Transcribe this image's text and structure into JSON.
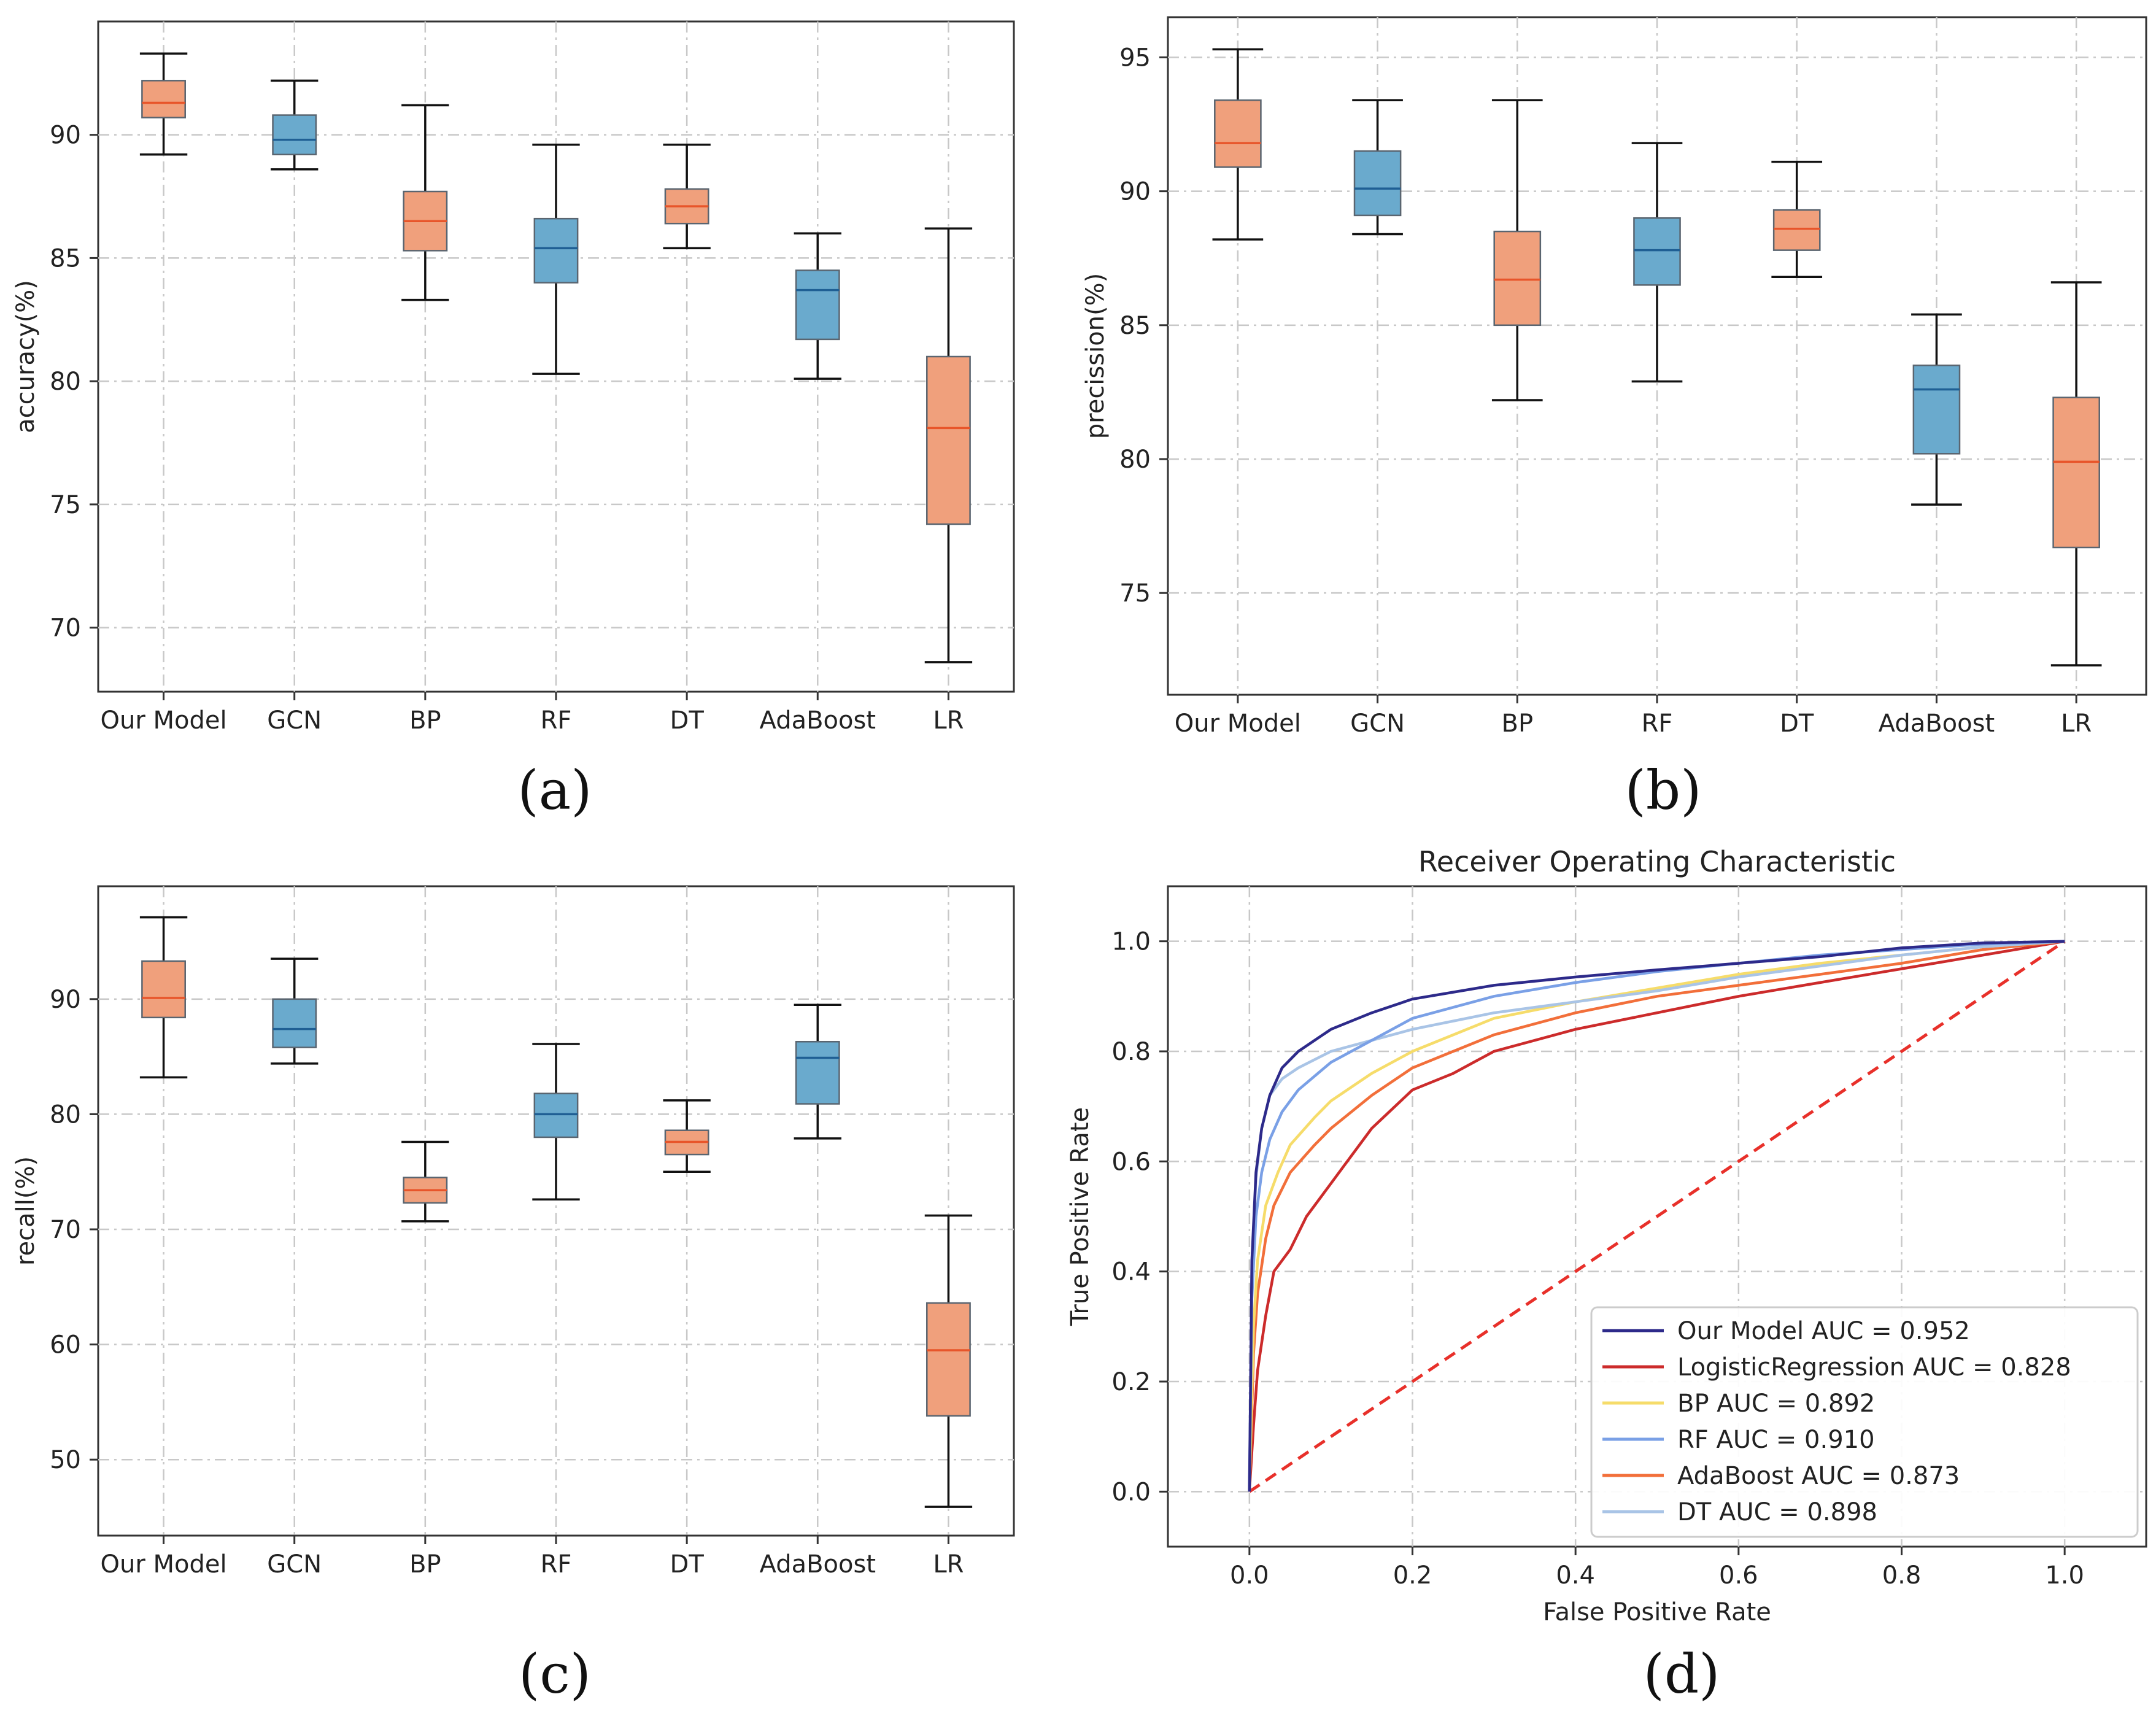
{
  "colors": {
    "orange_box": "#f0a07c",
    "orange_median": "#e8552a",
    "blue_box": "#6aaacd",
    "blue_median": "#1f5f94",
    "grid": "#c8c8c8",
    "axis": "#333333"
  },
  "chart_data": [
    {
      "id": "a",
      "type": "box",
      "caption": "(a)",
      "title": "",
      "xlabel": "",
      "ylabel": "accuracy(%)",
      "ylim": [
        67.4,
        94.6
      ],
      "yticks": [
        70,
        75,
        80,
        85,
        90
      ],
      "categories": [
        "Our Model",
        "GCN",
        "BP",
        "RF",
        "DT",
        "AdaBoost",
        "LR"
      ],
      "box_colors": [
        "orange",
        "blue",
        "orange",
        "blue",
        "orange",
        "blue",
        "orange"
      ],
      "boxes": [
        {
          "min": 89.2,
          "q1": 90.7,
          "median": 91.3,
          "q3": 92.2,
          "max": 93.3
        },
        {
          "min": 88.6,
          "q1": 89.2,
          "median": 89.8,
          "q3": 90.8,
          "max": 92.2
        },
        {
          "min": 83.3,
          "q1": 85.3,
          "median": 86.5,
          "q3": 87.7,
          "max": 91.2
        },
        {
          "min": 80.3,
          "q1": 84.0,
          "median": 85.4,
          "q3": 86.6,
          "max": 89.6
        },
        {
          "min": 85.4,
          "q1": 86.4,
          "median": 87.1,
          "q3": 87.8,
          "max": 89.6
        },
        {
          "min": 80.1,
          "q1": 81.7,
          "median": 83.7,
          "q3": 84.5,
          "max": 86.0
        },
        {
          "min": 68.6,
          "q1": 74.2,
          "median": 78.1,
          "q3": 81.0,
          "max": 86.2
        }
      ]
    },
    {
      "id": "b",
      "type": "box",
      "caption": "(b)",
      "title": "",
      "xlabel": "",
      "ylabel": "precission(%)",
      "ylim": [
        71.2,
        96.5
      ],
      "yticks": [
        75,
        80,
        85,
        90,
        95
      ],
      "categories": [
        "Our Model",
        "GCN",
        "BP",
        "RF",
        "DT",
        "AdaBoost",
        "LR"
      ],
      "box_colors": [
        "orange",
        "blue",
        "orange",
        "blue",
        "orange",
        "blue",
        "orange"
      ],
      "boxes": [
        {
          "min": 88.2,
          "q1": 90.9,
          "median": 91.8,
          "q3": 93.4,
          "max": 95.3
        },
        {
          "min": 88.4,
          "q1": 89.1,
          "median": 90.1,
          "q3": 91.5,
          "max": 93.4
        },
        {
          "min": 82.2,
          "q1": 85.0,
          "median": 86.7,
          "q3": 88.5,
          "max": 93.4
        },
        {
          "min": 82.9,
          "q1": 86.5,
          "median": 87.8,
          "q3": 89.0,
          "max": 91.8
        },
        {
          "min": 86.8,
          "q1": 87.8,
          "median": 88.6,
          "q3": 89.3,
          "max": 91.1
        },
        {
          "min": 78.3,
          "q1": 80.2,
          "median": 82.6,
          "q3": 83.5,
          "max": 85.4
        },
        {
          "min": 72.3,
          "q1": 76.7,
          "median": 79.9,
          "q3": 82.3,
          "max": 86.6
        }
      ]
    },
    {
      "id": "c",
      "type": "box",
      "caption": "(c)",
      "title": "",
      "xlabel": "",
      "ylabel": "recall(%)",
      "ylim": [
        43.4,
        99.8
      ],
      "yticks": [
        50,
        60,
        70,
        80,
        90
      ],
      "categories": [
        "Our Model",
        "GCN",
        "BP",
        "RF",
        "DT",
        "AdaBoost",
        "LR"
      ],
      "box_colors": [
        "orange",
        "blue",
        "orange",
        "blue",
        "orange",
        "blue",
        "orange"
      ],
      "boxes": [
        {
          "min": 83.2,
          "q1": 88.4,
          "median": 90.1,
          "q3": 93.3,
          "max": 97.1
        },
        {
          "min": 84.4,
          "q1": 85.8,
          "median": 87.4,
          "q3": 90.0,
          "max": 93.5
        },
        {
          "min": 70.7,
          "q1": 72.3,
          "median": 73.4,
          "q3": 74.5,
          "max": 77.6
        },
        {
          "min": 72.6,
          "q1": 78.0,
          "median": 80.0,
          "q3": 81.8,
          "max": 86.1
        },
        {
          "min": 75.0,
          "q1": 76.5,
          "median": 77.6,
          "q3": 78.6,
          "max": 81.2
        },
        {
          "min": 77.9,
          "q1": 80.9,
          "median": 84.9,
          "q3": 86.3,
          "max": 89.5
        },
        {
          "min": 45.9,
          "q1": 53.8,
          "median": 59.5,
          "q3": 63.6,
          "max": 71.2
        }
      ]
    },
    {
      "id": "d",
      "type": "line",
      "caption": "(d)",
      "title": "Receiver Operating Characteristic",
      "xlabel": "False Positive Rate",
      "ylabel": "True Positive Rate",
      "xlim": [
        -0.1,
        1.1
      ],
      "ylim": [
        -0.1,
        1.1
      ],
      "xticks": [
        "0.0",
        "0.2",
        "0.4",
        "0.6",
        "0.8",
        "1.0"
      ],
      "yticks": [
        "0.0",
        "0.2",
        "0.4",
        "0.6",
        "0.8",
        "1.0"
      ],
      "legend_position": "lower-right",
      "diagonal": {
        "x": [
          0,
          1
        ],
        "y": [
          0,
          1
        ],
        "color": "#e8302a",
        "style": "dashed"
      },
      "series": [
        {
          "name": "Our Model AUC = 0.952",
          "color": "#2d2a8a",
          "x": [
            0,
            0.003,
            0.008,
            0.015,
            0.025,
            0.04,
            0.06,
            0.1,
            0.15,
            0.2,
            0.3,
            0.4,
            0.5,
            0.6,
            0.7,
            0.8,
            0.9,
            1.0
          ],
          "y": [
            0,
            0.42,
            0.58,
            0.66,
            0.72,
            0.77,
            0.8,
            0.84,
            0.87,
            0.895,
            0.92,
            0.935,
            0.948,
            0.96,
            0.972,
            0.988,
            0.997,
            1.0
          ]
        },
        {
          "name": "LogisticRegression AUC = 0.828",
          "color": "#cc2b2b",
          "x": [
            0,
            0.005,
            0.01,
            0.02,
            0.03,
            0.05,
            0.07,
            0.1,
            0.12,
            0.15,
            0.2,
            0.25,
            0.3,
            0.4,
            0.5,
            0.6,
            0.7,
            0.8,
            0.9,
            1.0
          ],
          "y": [
            0,
            0.12,
            0.22,
            0.32,
            0.4,
            0.44,
            0.5,
            0.56,
            0.6,
            0.66,
            0.73,
            0.76,
            0.8,
            0.84,
            0.87,
            0.9,
            0.925,
            0.95,
            0.975,
            1.0
          ]
        },
        {
          "name": "BP AUC = 0.892",
          "color": "#f6dc6a",
          "x": [
            0,
            0.005,
            0.01,
            0.02,
            0.035,
            0.05,
            0.08,
            0.1,
            0.15,
            0.2,
            0.3,
            0.4,
            0.5,
            0.6,
            0.7,
            0.8,
            0.9,
            1.0
          ],
          "y": [
            0,
            0.3,
            0.42,
            0.52,
            0.58,
            0.63,
            0.68,
            0.71,
            0.76,
            0.8,
            0.86,
            0.89,
            0.915,
            0.94,
            0.96,
            0.975,
            0.99,
            1.0
          ]
        },
        {
          "name": "RF AUC = 0.910",
          "color": "#7aa0e6",
          "x": [
            0,
            0.003,
            0.008,
            0.015,
            0.025,
            0.04,
            0.06,
            0.1,
            0.15,
            0.2,
            0.3,
            0.4,
            0.5,
            0.6,
            0.7,
            0.8,
            0.9,
            1.0
          ],
          "y": [
            0,
            0.35,
            0.5,
            0.58,
            0.64,
            0.69,
            0.73,
            0.78,
            0.82,
            0.86,
            0.9,
            0.925,
            0.945,
            0.96,
            0.975,
            0.985,
            0.995,
            1.0
          ]
        },
        {
          "name": "AdaBoost AUC = 0.873",
          "color": "#f26f3a",
          "x": [
            0,
            0.005,
            0.01,
            0.02,
            0.03,
            0.05,
            0.08,
            0.1,
            0.15,
            0.2,
            0.25,
            0.3,
            0.4,
            0.5,
            0.6,
            0.7,
            0.8,
            0.9,
            1.0
          ],
          "y": [
            0,
            0.25,
            0.36,
            0.46,
            0.52,
            0.58,
            0.63,
            0.66,
            0.72,
            0.77,
            0.8,
            0.83,
            0.87,
            0.9,
            0.92,
            0.94,
            0.96,
            0.985,
            1.0
          ]
        },
        {
          "name": "DT AUC = 0.898",
          "color": "#a9c4e6",
          "x": [
            0,
            0.003,
            0.008,
            0.015,
            0.025,
            0.04,
            0.06,
            0.1,
            0.15,
            0.2,
            0.3,
            0.4,
            0.5,
            0.6,
            0.7,
            0.8,
            0.9,
            1.0
          ],
          "y": [
            0,
            0.4,
            0.57,
            0.66,
            0.72,
            0.75,
            0.77,
            0.8,
            0.82,
            0.84,
            0.87,
            0.89,
            0.91,
            0.935,
            0.955,
            0.975,
            0.99,
            1.0
          ]
        }
      ]
    }
  ]
}
